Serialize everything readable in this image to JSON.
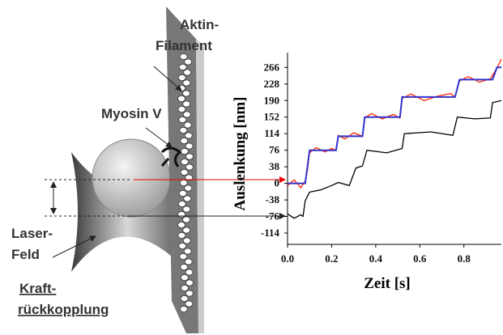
{
  "labels": {
    "aktin": [
      "Aktin-",
      "Filament"
    ],
    "myosin": "Myosin V",
    "laser": [
      "Laser-",
      "Feld"
    ],
    "kraft": [
      "Kraft-",
      "rückkopplung"
    ]
  },
  "chart_data": {
    "type": "line",
    "ylabel": "Auslenkung [nm]",
    "xlabel": "Zeit [s]",
    "xlim": [
      0,
      0.97
    ],
    "ylim": [
      -140,
      300
    ],
    "xticks": [
      {
        "value": 0,
        "label": "0.0"
      },
      0.2,
      0.4,
      0.6,
      0.8
    ],
    "yticks": [
      266,
      228,
      190,
      152,
      114,
      76,
      38,
      0,
      -38,
      -76,
      -114
    ],
    "series": [
      {
        "color": "#ff2a00",
        "x": [
          0,
          0.03,
          0.06,
          0.08,
          0.09,
          0.1,
          0.13,
          0.17,
          0.2,
          0.22,
          0.23,
          0.26,
          0.3,
          0.34,
          0.35,
          0.38,
          0.43,
          0.48,
          0.51,
          0.52,
          0.56,
          0.62,
          0.68,
          0.74,
          0.76,
          0.78,
          0.82,
          0.87,
          0.92,
          0.93,
          0.95,
          0.97
        ],
        "values": [
          -5,
          8,
          -10,
          5,
          30,
          70,
          82,
          72,
          80,
          76,
          110,
          102,
          116,
          108,
          150,
          160,
          148,
          158,
          150,
          195,
          205,
          190,
          200,
          206,
          198,
          235,
          245,
          232,
          240,
          248,
          265,
          285
        ]
      },
      {
        "color": "#3333cc",
        "x": [
          0,
          0.08,
          0.1,
          0.22,
          0.23,
          0.34,
          0.35,
          0.51,
          0.52,
          0.76,
          0.78,
          0.93,
          0.95,
          0.97
        ],
        "values": [
          0,
          0,
          76,
          76,
          108,
          108,
          152,
          152,
          198,
          198,
          238,
          238,
          266,
          266
        ]
      },
      {
        "color": "#000000",
        "x": [
          0,
          0.03,
          0.06,
          0.07,
          0.08,
          0.1,
          0.15,
          0.2,
          0.23,
          0.28,
          0.31,
          0.34,
          0.36,
          0.45,
          0.52,
          0.53,
          0.65,
          0.75,
          0.77,
          0.85,
          0.92,
          0.93,
          0.97
        ],
        "values": [
          -70,
          -80,
          -72,
          -76,
          -40,
          -20,
          -15,
          -5,
          2,
          -5,
          35,
          40,
          76,
          70,
          80,
          114,
          118,
          110,
          152,
          148,
          150,
          185,
          190
        ]
      }
    ]
  }
}
